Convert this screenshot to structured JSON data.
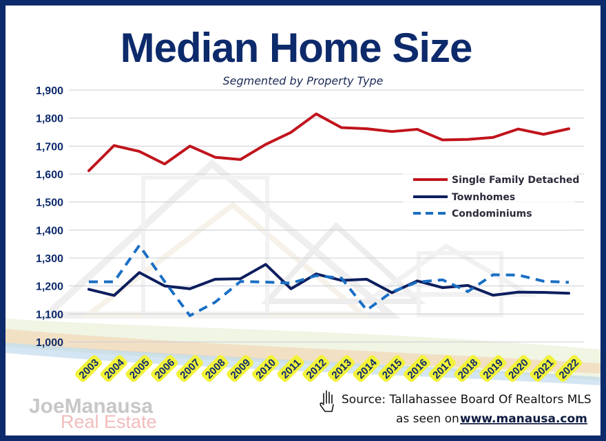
{
  "chart_data": {
    "type": "line",
    "title": "Median Home Size",
    "subtitle": "Segmented by Property Type",
    "categories": [
      "2003",
      "2004",
      "2005",
      "2006",
      "2007",
      "2008",
      "2009",
      "2010",
      "2011",
      "2012",
      "2013",
      "2014",
      "2015",
      "2016",
      "2017",
      "2018",
      "2019",
      "2020",
      "2021",
      "2022"
    ],
    "series": [
      {
        "name": "Single Family Detached",
        "color": "#c0141c",
        "style": "solid",
        "values": [
          1612,
          1702,
          1681,
          1636,
          1700,
          1660,
          1652,
          1706,
          1749,
          1815,
          1766,
          1762,
          1752,
          1760,
          1722,
          1724,
          1731,
          1761,
          1742,
          1762
        ]
      },
      {
        "name": "Townhomes",
        "color": "#0d1e5e",
        "style": "solid",
        "values": [
          1188,
          1166,
          1248,
          1200,
          1190,
          1224,
          1226,
          1277,
          1190,
          1243,
          1220,
          1224,
          1176,
          1218,
          1194,
          1202,
          1167,
          1178,
          1177,
          1174
        ]
      },
      {
        "name": "Condominiums",
        "color": "#1a6fc4",
        "style": "dashed",
        "values": [
          1215,
          1215,
          1345,
          1216,
          1094,
          1142,
          1216,
          1214,
          1210,
          1237,
          1228,
          1114,
          1179,
          1214,
          1222,
          1180,
          1240,
          1239,
          1217,
          1213
        ]
      }
    ],
    "ylim": [
      1000,
      1900
    ],
    "yticks": [
      "1,000",
      "1,100",
      "1,200",
      "1,300",
      "1,400",
      "1,500",
      "1,600",
      "1,700",
      "1,800",
      "1,900"
    ],
    "grid": true,
    "legend_position": "right"
  },
  "footer": {
    "source": "Source: Tallahassee Board Of Realtors MLS",
    "seen_on": "as seen on",
    "url": "www.manausa.com"
  },
  "logo": {
    "line1": "JoeManausa",
    "line2": "Real Estate"
  },
  "icons": {
    "source_icon": "hand-icon"
  }
}
